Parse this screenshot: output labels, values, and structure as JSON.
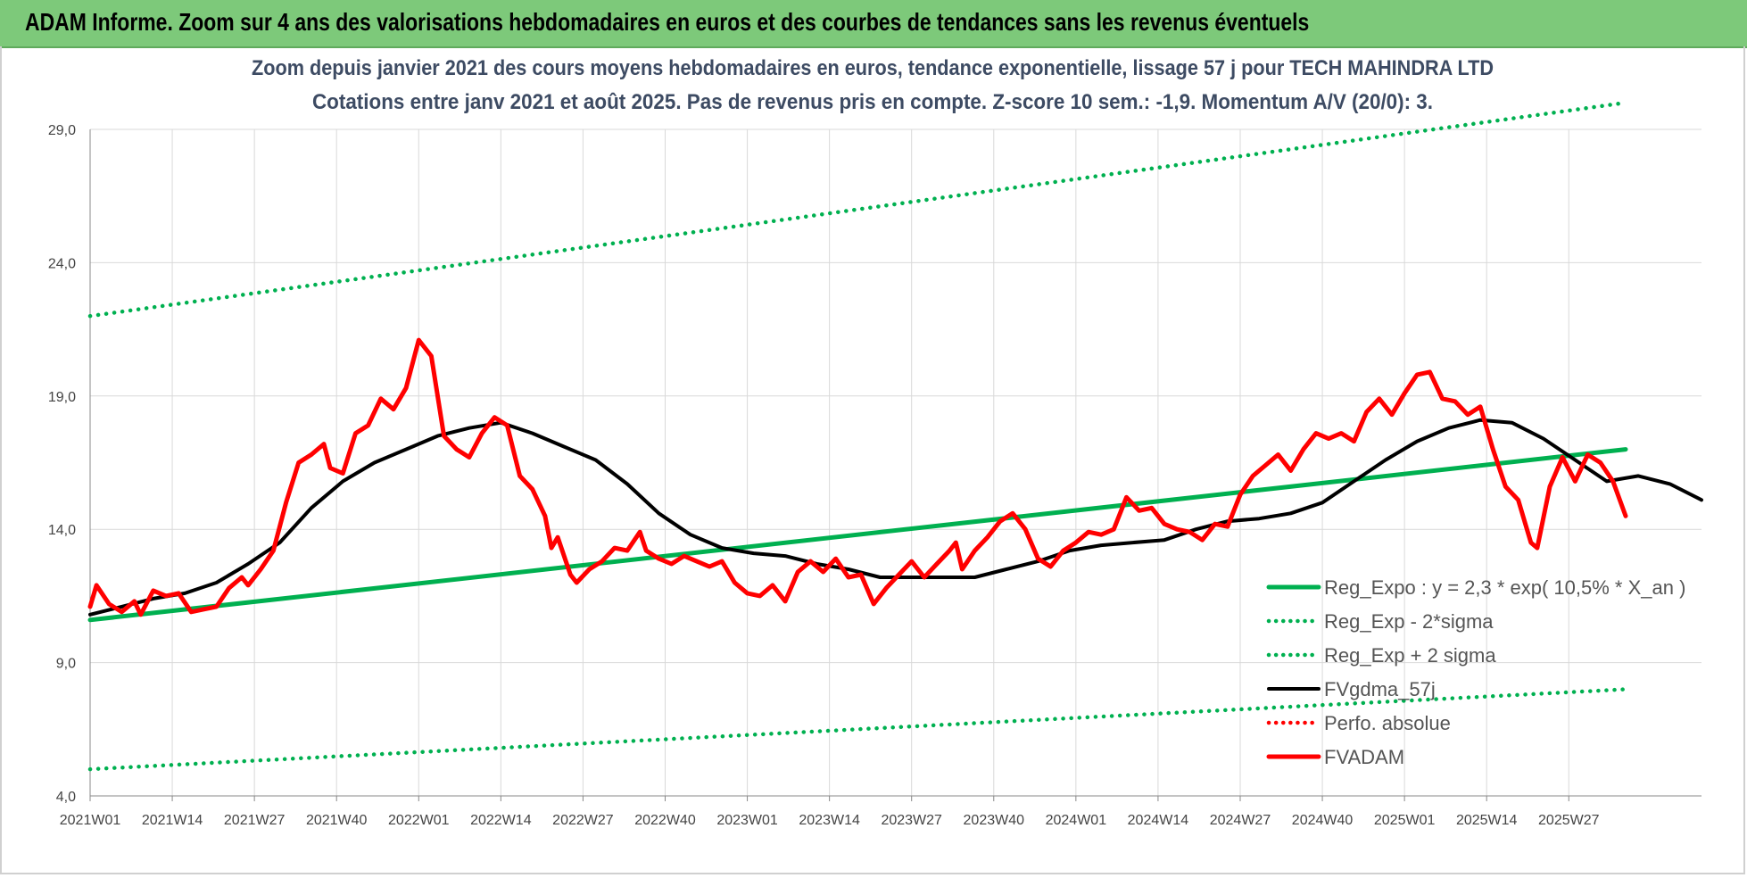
{
  "banner": {
    "title": "ADAM Informe. Zoom sur 4 ans des valorisations hebdomadaires en euros et des courbes de tendances sans les revenus éventuels"
  },
  "colors": {
    "banner_bg": "#7dc97a",
    "trend_green": "#00b050",
    "fvgdma_black": "#000000",
    "fvadam_red": "#ff0000",
    "grid": "#d9d9d9"
  },
  "chart_data": {
    "type": "line",
    "title": "Zoom depuis janvier 2021 des cours moyens hebdomadaires en euros, tendance exponentielle, lissage 57 j pour TECH MAHINDRA LTD",
    "subtitle": "Cotations entre janv 2021 et août 2025.  Pas de revenus pris en compte. Z-score 10 sem.: -1,9. Momentum A/V (20/0): 3.",
    "ylim": [
      4,
      29
    ],
    "yticks": [
      "4,0",
      "9,0",
      "14,0",
      "19,0",
      "24,0",
      "29,0"
    ],
    "xticks": [
      "2021W01",
      "2021W14",
      "2021W27",
      "2021W40",
      "2022W01",
      "2022W14",
      "2022W27",
      "2022W40",
      "2023W01",
      "2023W14",
      "2023W27",
      "2023W40",
      "2024W01",
      "2024W14",
      "2024W27",
      "2024W40",
      "2025W01",
      "2025W14",
      "2025W27"
    ],
    "grid": true,
    "legend_position": "bottom-right",
    "series": [
      {
        "name": "Reg_Expo : y = 2,3 * exp( 10,5% *  X_an )",
        "style": "solid-thick",
        "color": "#00b050",
        "points": [
          [
            0,
            10.6
          ],
          [
            243,
            17.0
          ]
        ]
      },
      {
        "name": "Reg_Exp - 2*sigma",
        "style": "dotted",
        "color": "#00b050",
        "points": [
          [
            0,
            5.0
          ],
          [
            243,
            8.0
          ]
        ]
      },
      {
        "name": "Reg_Exp + 2 sigma",
        "style": "dotted",
        "color": "#00b050",
        "points": [
          [
            0,
            22.0
          ],
          [
            243,
            30.0
          ]
        ]
      },
      {
        "name": "FVgdma_57j",
        "style": "solid",
        "color": "#000000",
        "points": [
          [
            0,
            10.8
          ],
          [
            5,
            11.1
          ],
          [
            10,
            11.4
          ],
          [
            15,
            11.6
          ],
          [
            20,
            12.0
          ],
          [
            25,
            12.7
          ],
          [
            30,
            13.5
          ],
          [
            35,
            14.8
          ],
          [
            40,
            15.8
          ],
          [
            45,
            16.5
          ],
          [
            50,
            17.0
          ],
          [
            55,
            17.5
          ],
          [
            60,
            17.8
          ],
          [
            65,
            18.0
          ],
          [
            70,
            17.6
          ],
          [
            75,
            17.1
          ],
          [
            80,
            16.6
          ],
          [
            85,
            15.7
          ],
          [
            90,
            14.6
          ],
          [
            95,
            13.8
          ],
          [
            100,
            13.3
          ],
          [
            105,
            13.1
          ],
          [
            110,
            13.0
          ],
          [
            115,
            12.7
          ],
          [
            120,
            12.5
          ],
          [
            125,
            12.2
          ],
          [
            130,
            12.2
          ],
          [
            135,
            12.2
          ],
          [
            140,
            12.2
          ],
          [
            145,
            12.5
          ],
          [
            150,
            12.8
          ],
          [
            155,
            13.2
          ],
          [
            160,
            13.4
          ],
          [
            165,
            13.5
          ],
          [
            170,
            13.6
          ],
          [
            175,
            14.0
          ],
          [
            180,
            14.3
          ],
          [
            185,
            14.4
          ],
          [
            190,
            14.6
          ],
          [
            195,
            15.0
          ],
          [
            200,
            15.8
          ],
          [
            205,
            16.6
          ],
          [
            210,
            17.3
          ],
          [
            215,
            17.8
          ],
          [
            220,
            18.1
          ],
          [
            225,
            18.0
          ],
          [
            230,
            17.4
          ],
          [
            235,
            16.6
          ],
          [
            240,
            15.8
          ],
          [
            245,
            16.0
          ],
          [
            250,
            15.7
          ],
          [
            255,
            15.1
          ]
        ]
      },
      {
        "name": "Perfo. absolue",
        "style": "dotted",
        "color": "#ff0000",
        "points": []
      },
      {
        "name": "FVADAM",
        "style": "solid-thick",
        "color": "#ff0000",
        "points": [
          [
            0,
            11.1
          ],
          [
            1,
            11.9
          ],
          [
            3,
            11.2
          ],
          [
            5,
            10.9
          ],
          [
            7,
            11.3
          ],
          [
            8,
            10.8
          ],
          [
            10,
            11.7
          ],
          [
            12,
            11.5
          ],
          [
            14,
            11.6
          ],
          [
            16,
            10.9
          ],
          [
            18,
            11.0
          ],
          [
            20,
            11.1
          ],
          [
            22,
            11.8
          ],
          [
            24,
            12.2
          ],
          [
            25,
            11.9
          ],
          [
            27,
            12.5
          ],
          [
            29,
            13.2
          ],
          [
            31,
            15.0
          ],
          [
            33,
            16.5
          ],
          [
            35,
            16.8
          ],
          [
            37,
            17.2
          ],
          [
            38,
            16.3
          ],
          [
            40,
            16.1
          ],
          [
            42,
            17.6
          ],
          [
            44,
            17.9
          ],
          [
            46,
            18.9
          ],
          [
            48,
            18.5
          ],
          [
            50,
            19.3
          ],
          [
            52,
            21.1
          ],
          [
            54,
            20.5
          ],
          [
            56,
            17.5
          ],
          [
            58,
            17.0
          ],
          [
            60,
            16.7
          ],
          [
            62,
            17.6
          ],
          [
            64,
            18.2
          ],
          [
            66,
            17.9
          ],
          [
            68,
            16.0
          ],
          [
            70,
            15.5
          ],
          [
            72,
            14.5
          ],
          [
            73,
            13.3
          ],
          [
            74,
            13.7
          ],
          [
            76,
            12.3
          ],
          [
            77,
            12.0
          ],
          [
            79,
            12.5
          ],
          [
            81,
            12.8
          ],
          [
            83,
            13.3
          ],
          [
            85,
            13.2
          ],
          [
            87,
            13.9
          ],
          [
            88,
            13.2
          ],
          [
            90,
            12.9
          ],
          [
            92,
            12.7
          ],
          [
            94,
            13.0
          ],
          [
            96,
            12.8
          ],
          [
            98,
            12.6
          ],
          [
            100,
            12.8
          ],
          [
            102,
            12.0
          ],
          [
            104,
            11.6
          ],
          [
            106,
            11.5
          ],
          [
            108,
            11.9
          ],
          [
            110,
            11.3
          ],
          [
            112,
            12.4
          ],
          [
            114,
            12.8
          ],
          [
            116,
            12.4
          ],
          [
            118,
            12.9
          ],
          [
            120,
            12.2
          ],
          [
            122,
            12.3
          ],
          [
            124,
            11.2
          ],
          [
            126,
            11.8
          ],
          [
            128,
            12.3
          ],
          [
            130,
            12.8
          ],
          [
            132,
            12.2
          ],
          [
            134,
            12.7
          ],
          [
            136,
            13.2
          ],
          [
            137,
            13.5
          ],
          [
            138,
            12.5
          ],
          [
            140,
            13.2
          ],
          [
            142,
            13.7
          ],
          [
            144,
            14.3
          ],
          [
            146,
            14.6
          ],
          [
            148,
            14.0
          ],
          [
            150,
            12.9
          ],
          [
            152,
            12.6
          ],
          [
            154,
            13.2
          ],
          [
            156,
            13.5
          ],
          [
            158,
            13.9
          ],
          [
            160,
            13.8
          ],
          [
            162,
            14.0
          ],
          [
            164,
            15.2
          ],
          [
            166,
            14.7
          ],
          [
            168,
            14.8
          ],
          [
            170,
            14.2
          ],
          [
            172,
            14.0
          ],
          [
            174,
            13.9
          ],
          [
            176,
            13.6
          ],
          [
            178,
            14.2
          ],
          [
            180,
            14.1
          ],
          [
            182,
            15.3
          ],
          [
            184,
            16.0
          ],
          [
            186,
            16.4
          ],
          [
            188,
            16.8
          ],
          [
            190,
            16.2
          ],
          [
            192,
            17.0
          ],
          [
            194,
            17.6
          ],
          [
            196,
            17.4
          ],
          [
            198,
            17.6
          ],
          [
            200,
            17.3
          ],
          [
            202,
            18.4
          ],
          [
            204,
            18.9
          ],
          [
            206,
            18.3
          ],
          [
            208,
            19.1
          ],
          [
            210,
            19.8
          ],
          [
            212,
            19.9
          ],
          [
            214,
            18.9
          ],
          [
            216,
            18.8
          ],
          [
            218,
            18.3
          ],
          [
            220,
            18.6
          ],
          [
            222,
            17.0
          ],
          [
            224,
            15.6
          ],
          [
            226,
            15.1
          ],
          [
            228,
            13.5
          ],
          [
            229,
            13.3
          ],
          [
            231,
            15.6
          ],
          [
            233,
            16.7
          ],
          [
            235,
            15.8
          ],
          [
            237,
            16.8
          ],
          [
            239,
            16.5
          ],
          [
            241,
            15.8
          ],
          [
            243,
            14.5
          ]
        ]
      }
    ]
  }
}
